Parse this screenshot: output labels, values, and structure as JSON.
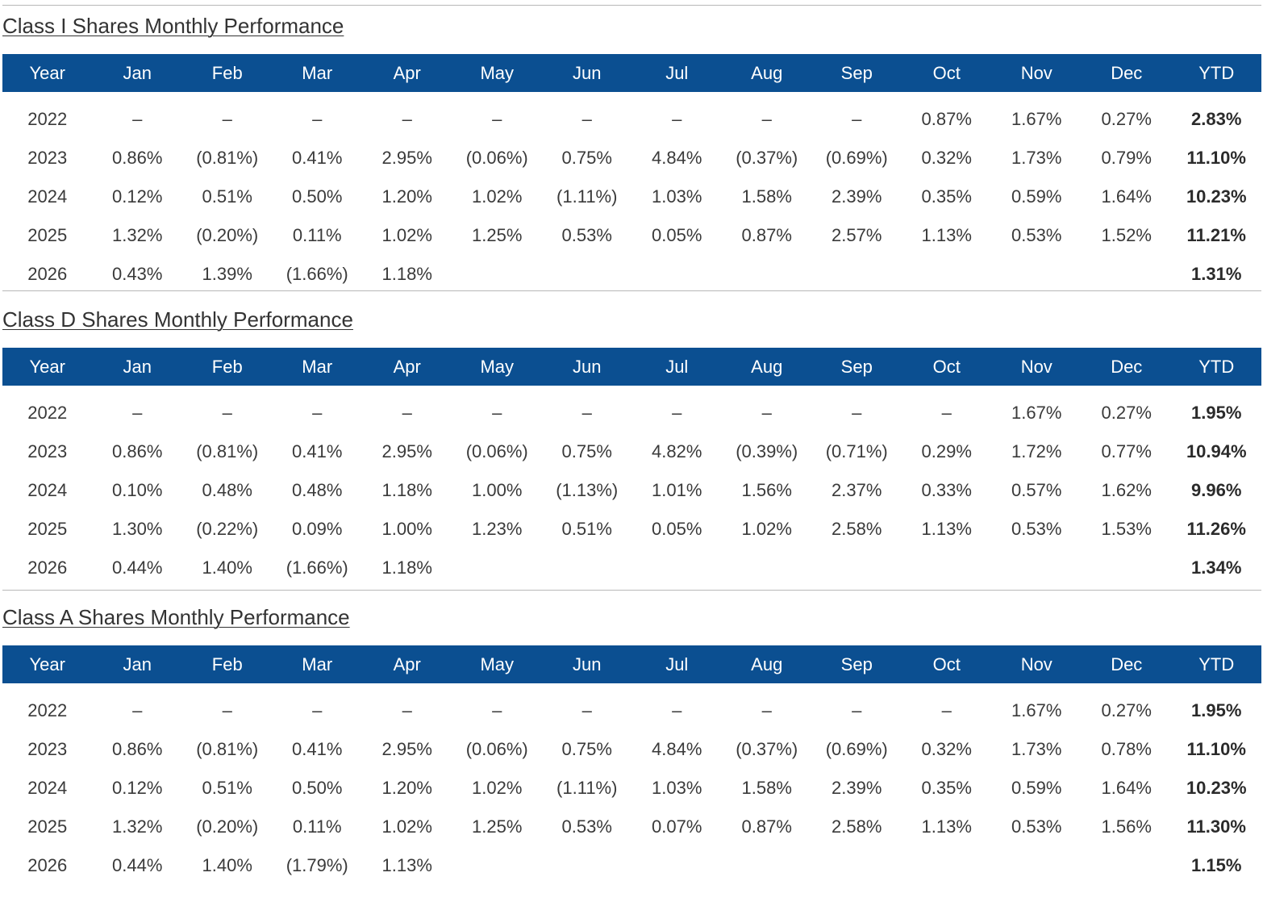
{
  "columns": [
    "Year",
    "Jan",
    "Feb",
    "Mar",
    "Apr",
    "May",
    "Jun",
    "Jul",
    "Aug",
    "Sep",
    "Oct",
    "Nov",
    "Dec",
    "YTD"
  ],
  "sections": [
    {
      "title": "Class I Shares Monthly Performance",
      "rows": [
        [
          "2022",
          "–",
          "–",
          "–",
          "–",
          "–",
          "–",
          "–",
          "–",
          "–",
          "0.87%",
          "1.67%",
          "0.27%",
          "2.83%"
        ],
        [
          "2023",
          "0.86%",
          "(0.81%)",
          "0.41%",
          "2.95%",
          "(0.06%)",
          "0.75%",
          "4.84%",
          "(0.37%)",
          "(0.69%)",
          "0.32%",
          "1.73%",
          "0.79%",
          "11.10%"
        ],
        [
          "2024",
          "0.12%",
          "0.51%",
          "0.50%",
          "1.20%",
          "1.02%",
          "(1.11%)",
          "1.03%",
          "1.58%",
          "2.39%",
          "0.35%",
          "0.59%",
          "1.64%",
          "10.23%"
        ],
        [
          "2025",
          "1.32%",
          "(0.20%)",
          "0.11%",
          "1.02%",
          "1.25%",
          "0.53%",
          "0.05%",
          "0.87%",
          "2.57%",
          "1.13%",
          "0.53%",
          "1.52%",
          "11.21%"
        ],
        [
          "2026",
          "0.43%",
          "1.39%",
          "(1.66%)",
          "1.18%",
          "",
          "",
          "",
          "",
          "",
          "",
          "",
          "",
          "1.31%"
        ]
      ]
    },
    {
      "title": "Class D Shares Monthly Performance",
      "rows": [
        [
          "2022",
          "–",
          "–",
          "–",
          "–",
          "–",
          "–",
          "–",
          "–",
          "–",
          "–",
          "1.67%",
          "0.27%",
          "1.95%"
        ],
        [
          "2023",
          "0.86%",
          "(0.81%)",
          "0.41%",
          "2.95%",
          "(0.06%)",
          "0.75%",
          "4.82%",
          "(0.39%)",
          "(0.71%)",
          "0.29%",
          "1.72%",
          "0.77%",
          "10.94%"
        ],
        [
          "2024",
          "0.10%",
          "0.48%",
          "0.48%",
          "1.18%",
          "1.00%",
          "(1.13%)",
          "1.01%",
          "1.56%",
          "2.37%",
          "0.33%",
          "0.57%",
          "1.62%",
          "9.96%"
        ],
        [
          "2025",
          "1.30%",
          "(0.22%)",
          "0.09%",
          "1.00%",
          "1.23%",
          "0.51%",
          "0.05%",
          "1.02%",
          "2.58%",
          "1.13%",
          "0.53%",
          "1.53%",
          "11.26%"
        ],
        [
          "2026",
          "0.44%",
          "1.40%",
          "(1.66%)",
          "1.18%",
          "",
          "",
          "",
          "",
          "",
          "",
          "",
          "",
          "1.34%"
        ]
      ]
    },
    {
      "title": "Class A Shares Monthly Performance",
      "rows": [
        [
          "2022",
          "–",
          "–",
          "–",
          "–",
          "–",
          "–",
          "–",
          "–",
          "–",
          "–",
          "1.67%",
          "0.27%",
          "1.95%"
        ],
        [
          "2023",
          "0.86%",
          "(0.81%)",
          "0.41%",
          "2.95%",
          "(0.06%)",
          "0.75%",
          "4.84%",
          "(0.37%)",
          "(0.69%)",
          "0.32%",
          "1.73%",
          "0.78%",
          "11.10%"
        ],
        [
          "2024",
          "0.12%",
          "0.51%",
          "0.50%",
          "1.20%",
          "1.02%",
          "(1.11%)",
          "1.03%",
          "1.58%",
          "2.39%",
          "0.35%",
          "0.59%",
          "1.64%",
          "10.23%"
        ],
        [
          "2025",
          "1.32%",
          "(0.20%)",
          "0.11%",
          "1.02%",
          "1.25%",
          "0.53%",
          "0.07%",
          "0.87%",
          "2.58%",
          "1.13%",
          "0.53%",
          "1.56%",
          "11.30%"
        ],
        [
          "2026",
          "0.44%",
          "1.40%",
          "(1.79%)",
          "1.13%",
          "",
          "",
          "",
          "",
          "",
          "",
          "",
          "",
          "1.15%"
        ]
      ]
    }
  ]
}
